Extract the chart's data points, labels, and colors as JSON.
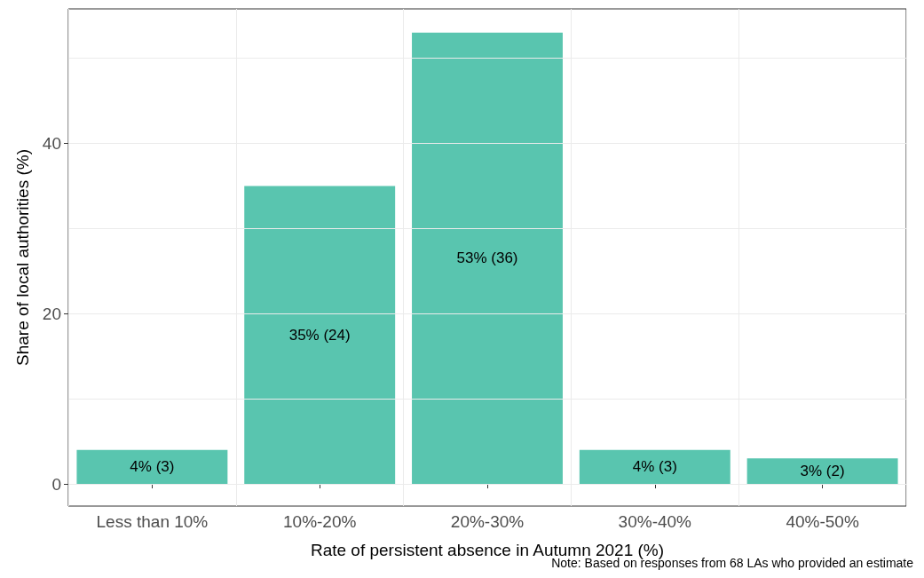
{
  "chart_data": {
    "type": "bar",
    "xlabel": "Rate of persistent absence in Autumn 2021 (%)",
    "ylabel": "Share of local authorities (%)",
    "categories": [
      "Less than 10%",
      "10%-20%",
      "20%-30%",
      "30%-40%",
      "40%-50%"
    ],
    "values": [
      4,
      35,
      53,
      4,
      3
    ],
    "value_labels": [
      "4% (3)",
      "35% (24)",
      "53% (36)",
      "4% (3)",
      "3% (2)"
    ],
    "color": "#59c5af",
    "ylim": [
      -2.6,
      55.8
    ],
    "yticks": [
      0,
      {
        "value": 10,
        "label": null
      },
      20,
      {
        "value": 30,
        "label": null
      },
      40,
      {
        "value": 50,
        "label": null
      }
    ],
    "grid": true,
    "annotations": [
      "Note: Based on responses from 68 LAs who provided an estimate"
    ]
  }
}
